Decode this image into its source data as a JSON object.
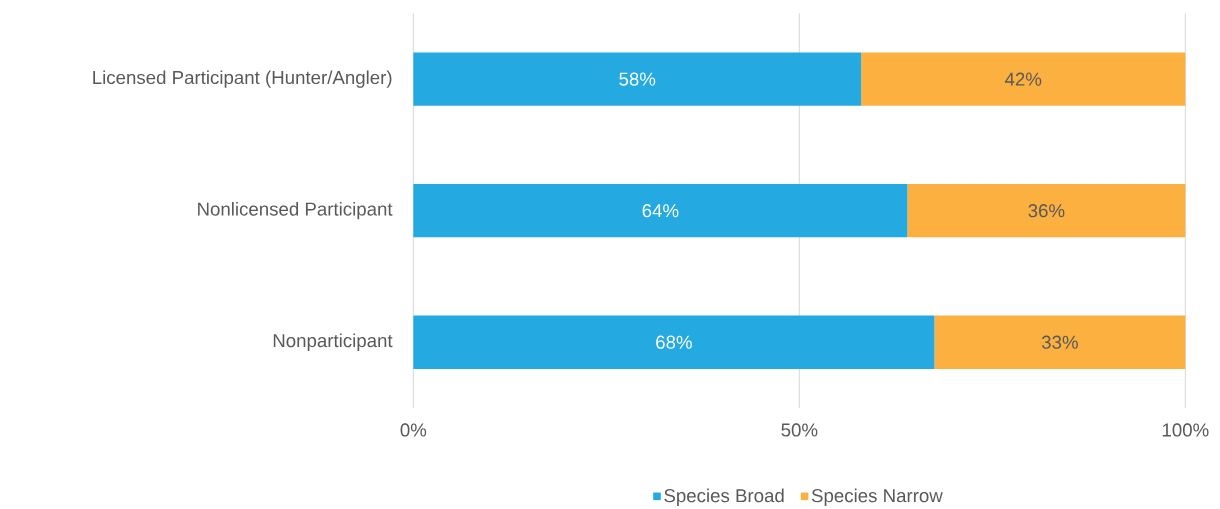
{
  "chart_data": {
    "type": "bar",
    "orientation": "horizontal",
    "stacked": true,
    "categories": [
      "Licensed Participant (Hunter/Angler)",
      "Nonlicensed Participant",
      "Nonparticipant"
    ],
    "series": [
      {
        "name": "Species Broad",
        "color": "#24a9e1",
        "values": [
          58,
          64,
          67.5
        ],
        "value_labels": [
          "58%",
          "64%",
          "68%"
        ]
      },
      {
        "name": "Species Narrow",
        "color": "#fbb040",
        "values": [
          42,
          36,
          32.5
        ],
        "value_labels": [
          "42%",
          "36%",
          "33%"
        ]
      }
    ],
    "xlim": [
      0,
      100
    ],
    "xticks": [
      {
        "value": 0,
        "label": "0%"
      },
      {
        "value": 50,
        "label": "50%"
      },
      {
        "value": 100,
        "label": "100%"
      }
    ],
    "grid": "x",
    "legend": "bottom"
  }
}
